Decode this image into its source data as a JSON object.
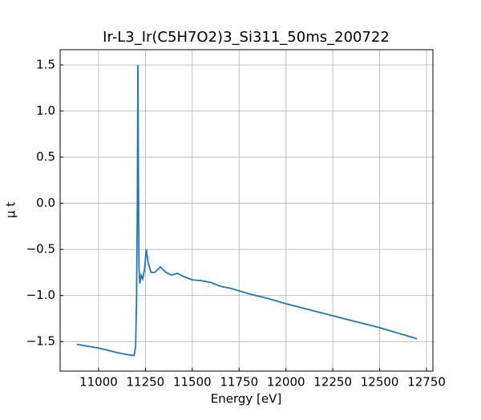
{
  "chart_data": {
    "type": "line",
    "title": "Ir-L3_Ir(C5H7O2)3_Si311_50ms_200722",
    "x_label": "Energy [eV]",
    "y_label": "μ t",
    "xlim": [
      10795,
      12784
    ],
    "ylim": [
      -1.82,
      1.665
    ],
    "xticks": [
      11000,
      11250,
      11500,
      11750,
      12000,
      12250,
      12500,
      12750
    ],
    "yticks": [
      {
        "value": 1.5,
        "label": "1.5"
      },
      {
        "value": 1.0,
        "label": "1.0"
      },
      {
        "value": 0.5,
        "label": "0.5"
      },
      {
        "value": 0,
        "label": "0.0"
      },
      {
        "value": -0.5,
        "label": "−0.5"
      },
      {
        "value": -1.0,
        "label": "−1.0"
      },
      {
        "value": -1.5,
        "label": "−1.5"
      }
    ],
    "grid": true,
    "series": [
      {
        "color": "#1f77b4",
        "x": [
          10884,
          11000,
          11100,
          11150,
          11180,
          11190,
          11198,
          11203,
          11207,
          11210,
          11213,
          11216,
          11220,
          11228,
          11236,
          11245,
          11255,
          11265,
          11280,
          11300,
          11330,
          11360,
          11390,
          11420,
          11460,
          11500,
          11550,
          11600,
          11650,
          11700,
          11750,
          11800,
          11900,
          12000,
          12250,
          12500,
          12700
        ],
        "values": [
          -1.53,
          -1.57,
          -1.62,
          -1.64,
          -1.65,
          -1.65,
          -1.55,
          -1.0,
          0.0,
          1.5,
          0.2,
          -0.7,
          -0.87,
          -0.78,
          -0.82,
          -0.72,
          -0.5,
          -0.65,
          -0.75,
          -0.75,
          -0.69,
          -0.75,
          -0.78,
          -0.76,
          -0.8,
          -0.83,
          -0.84,
          -0.86,
          -0.9,
          -0.92,
          -0.95,
          -0.98,
          -1.03,
          -1.09,
          -1.22,
          -1.35,
          -1.47
        ]
      }
    ]
  }
}
